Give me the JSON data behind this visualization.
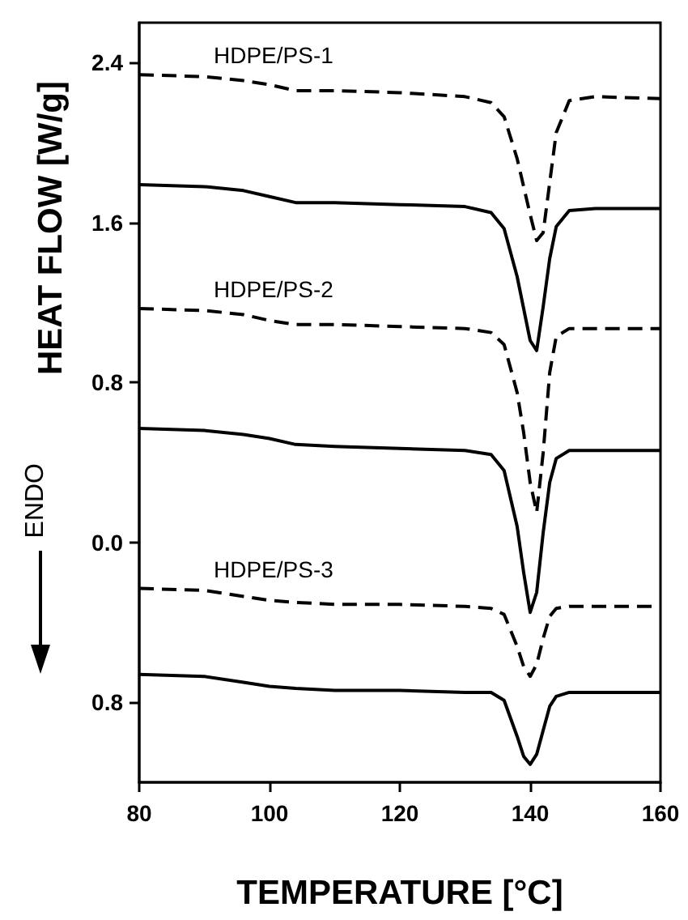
{
  "chart_data": {
    "type": "line",
    "xlabel": "TEMPERATURE [°C]",
    "ylabel": "HEAT FLOW [W/g]",
    "x": [
      80,
      90,
      96,
      100,
      104,
      110,
      120,
      130,
      134,
      136,
      138,
      139,
      140,
      141,
      142,
      143,
      144,
      146,
      150,
      160
    ],
    "xlim": [
      80,
      160
    ],
    "xticks": [
      80,
      100,
      120,
      140,
      160
    ],
    "ylim": [
      -1.2,
      2.6
    ],
    "yticks": [
      2.4,
      1.6,
      0.8,
      {
        "value": 0,
        "label": "0.0"
      },
      {
        "value": -0.8,
        "label": "0.8"
      }
    ],
    "grid": false,
    "marker": "none",
    "series": [
      {
        "color": "#000000",
        "line_style": "dashed",
        "values": [
          2.34,
          2.33,
          2.31,
          2.29,
          2.26,
          2.26,
          2.25,
          2.23,
          2.2,
          2.13,
          1.92,
          1.78,
          1.64,
          1.51,
          1.55,
          1.8,
          2.05,
          2.21,
          2.23,
          2.22
        ]
      },
      {
        "color": "#000000",
        "line_style": "solid",
        "values": [
          1.79,
          1.78,
          1.76,
          1.73,
          1.7,
          1.7,
          1.69,
          1.68,
          1.65,
          1.57,
          1.33,
          1.17,
          1.01,
          0.96,
          1.18,
          1.42,
          1.58,
          1.66,
          1.67,
          1.67
        ]
      },
      {
        "color": "#000000",
        "line_style": "dashed",
        "values": [
          1.17,
          1.16,
          1.14,
          1.11,
          1.09,
          1.09,
          1.08,
          1.07,
          1.05,
          0.99,
          0.75,
          0.55,
          0.3,
          0.15,
          0.45,
          0.85,
          1.03,
          1.07,
          1.07,
          1.07
        ]
      },
      {
        "color": "#000000",
        "line_style": "solid",
        "values": [
          0.57,
          0.56,
          0.54,
          0.52,
          0.49,
          0.48,
          0.47,
          0.46,
          0.44,
          0.36,
          0.08,
          -0.15,
          -0.35,
          -0.25,
          0.05,
          0.3,
          0.42,
          0.46,
          0.46,
          0.46
        ]
      },
      {
        "color": "#000000",
        "line_style": "dashed",
        "values": [
          -0.23,
          -0.24,
          -0.27,
          -0.29,
          -0.3,
          -0.31,
          -0.31,
          -0.32,
          -0.33,
          -0.36,
          -0.52,
          -0.62,
          -0.67,
          -0.61,
          -0.48,
          -0.37,
          -0.33,
          -0.32,
          -0.32,
          -0.32
        ]
      },
      {
        "color": "#000000",
        "line_style": "solid",
        "values": [
          -0.66,
          -0.67,
          -0.7,
          -0.72,
          -0.73,
          -0.74,
          -0.74,
          -0.75,
          -0.75,
          -0.79,
          -0.97,
          -1.07,
          -1.11,
          -1.06,
          -0.94,
          -0.82,
          -0.77,
          -0.75,
          -0.75,
          -0.75
        ]
      }
    ],
    "annotations": [
      "HDPE/PS-1",
      "HDPE/PS-2",
      "HDPE/PS-3",
      "ENDO"
    ]
  }
}
